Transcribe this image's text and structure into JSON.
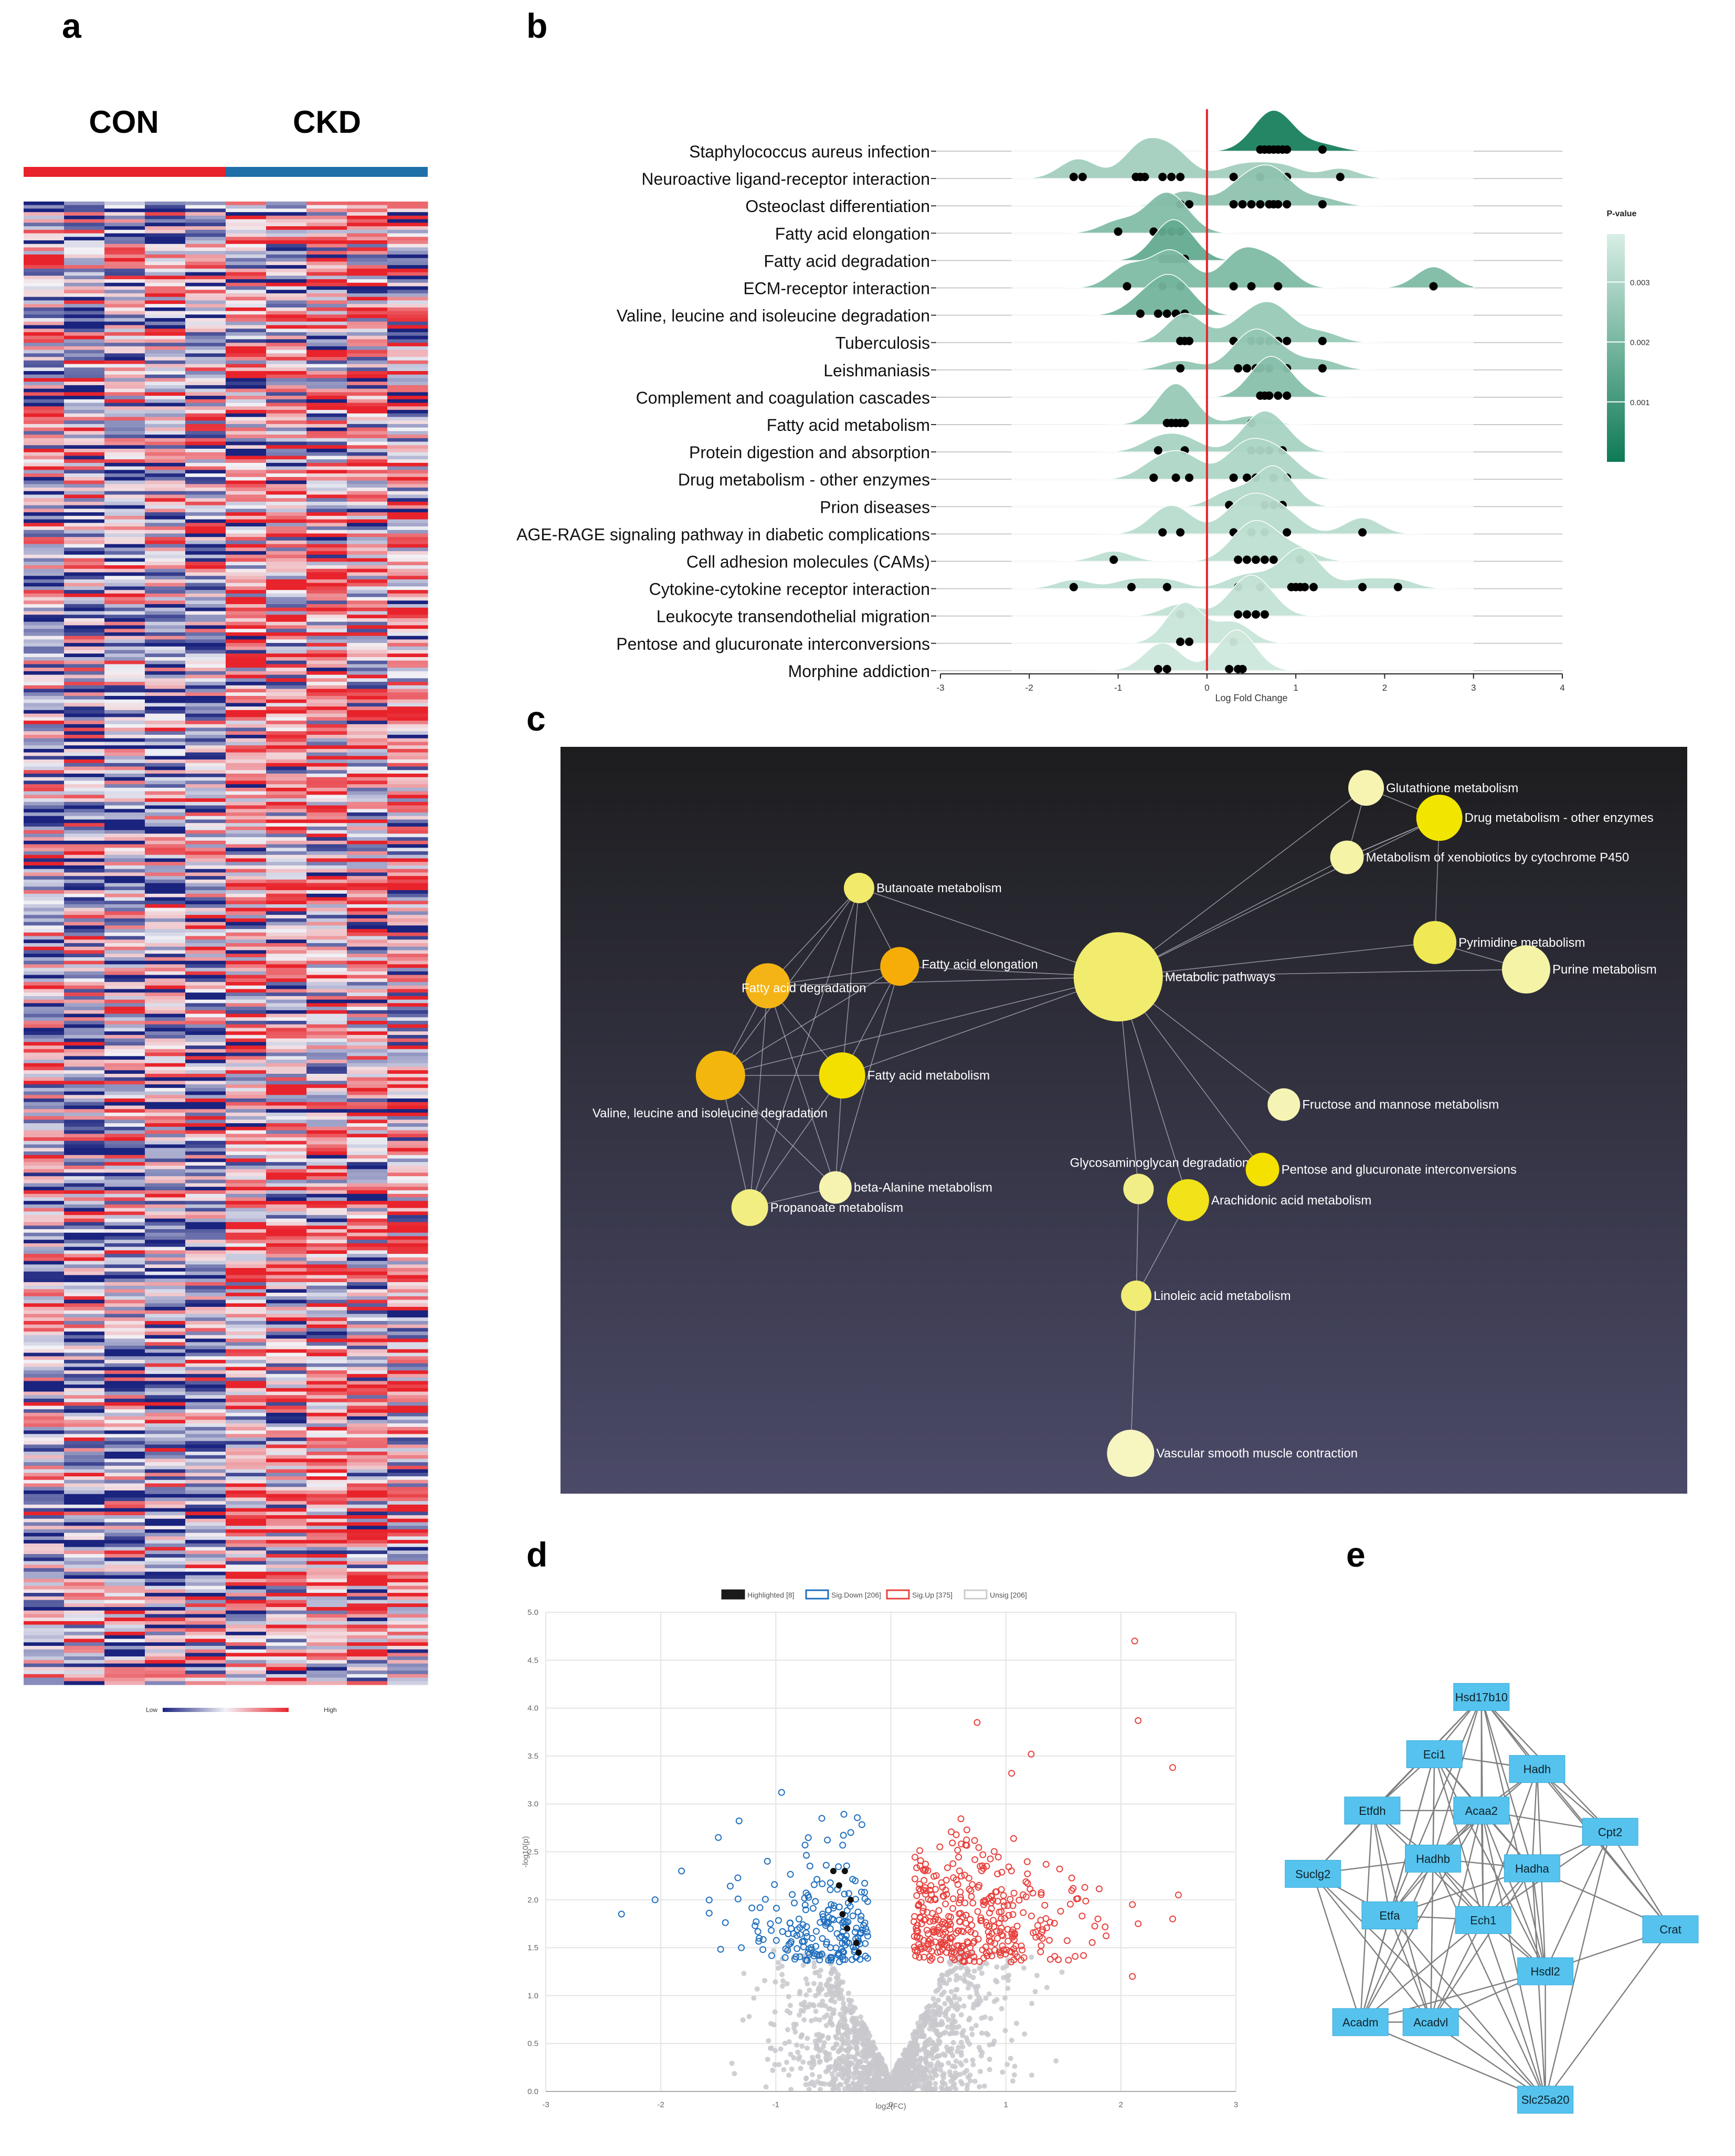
{
  "panels": {
    "a": {
      "letter": "a",
      "groups": [
        "CON",
        "CKD"
      ],
      "legend": {
        "low": "Low",
        "high": "High"
      },
      "colors": {
        "con": "#e8232b",
        "ckd": "#1f6fa8",
        "low": "#1a237e",
        "mid": "#f2f2f6",
        "high": "#e8232b"
      }
    },
    "b": {
      "letter": "b"
    },
    "c": {
      "letter": "c"
    },
    "d": {
      "letter": "d"
    },
    "e": {
      "letter": "e"
    }
  },
  "chart_data": [
    {
      "id": "ridge",
      "type": "ridgeline",
      "xlabel": "Log Fold Change",
      "xlim": [
        -3,
        4
      ],
      "xticks": [
        -3,
        -2,
        -1,
        0,
        1,
        2,
        3,
        4
      ],
      "refline_x": 0,
      "colorbar": {
        "title": "P-value",
        "ticks": [
          "0.003",
          "0.002",
          "0.001"
        ],
        "values": [
          0.003,
          0.002,
          0.001
        ],
        "range": [
          0.0,
          0.0038
        ]
      },
      "pathways": [
        {
          "name": "Staphylococcus aureus infection",
          "p": 0.0002,
          "points": [
            0.6,
            0.65,
            0.7,
            0.75,
            0.8,
            0.85,
            0.9,
            1.3
          ]
        },
        {
          "name": "Neuroactive ligand-receptor interaction",
          "p": 0.0028,
          "points": [
            -1.5,
            -1.4,
            -0.8,
            -0.75,
            -0.7,
            -0.5,
            -0.4,
            -0.3,
            0.3,
            0.6,
            0.9,
            1.5
          ]
        },
        {
          "name": "Osteoclast differentiation",
          "p": 0.0024,
          "points": [
            -0.3,
            -0.2,
            0.3,
            0.4,
            0.5,
            0.6,
            0.7,
            0.75,
            0.8,
            0.9,
            1.3
          ]
        },
        {
          "name": "Fatty acid elongation",
          "p": 0.0022,
          "points": [
            -1.0,
            -0.6,
            -0.5,
            -0.4,
            -0.3
          ]
        },
        {
          "name": "Fatty acid degradation",
          "p": 0.0016,
          "points": [
            -0.5,
            -0.45,
            -0.4,
            -0.35,
            -0.3,
            -0.25
          ]
        },
        {
          "name": "ECM-receptor interaction",
          "p": 0.0021,
          "points": [
            -0.9,
            -0.5,
            -0.3,
            0.3,
            0.5,
            0.8,
            2.55
          ]
        },
        {
          "name": "Valine, leucine and isoleucine degradation",
          "p": 0.0019,
          "points": [
            -0.75,
            -0.55,
            -0.45,
            -0.35,
            -0.25
          ]
        },
        {
          "name": "Tuberculosis",
          "p": 0.0026,
          "points": [
            -0.3,
            -0.25,
            -0.2,
            0.3,
            0.5,
            0.6,
            0.7,
            0.8,
            0.9,
            1.3
          ]
        },
        {
          "name": "Leishmaniasis",
          "p": 0.0025,
          "points": [
            -0.3,
            0.35,
            0.45,
            0.55,
            0.6,
            0.7,
            0.9,
            1.3
          ]
        },
        {
          "name": "Complement and coagulation cascades",
          "p": 0.0023,
          "points": [
            0.6,
            0.65,
            0.7,
            0.8,
            0.9
          ]
        },
        {
          "name": "Fatty acid metabolism",
          "p": 0.0026,
          "points": [
            -0.45,
            -0.4,
            -0.35,
            -0.3,
            -0.25,
            0.5
          ]
        },
        {
          "name": "Protein digestion and absorption",
          "p": 0.0029,
          "points": [
            -0.55,
            -0.25,
            0.5,
            0.6,
            0.7,
            0.85
          ]
        },
        {
          "name": "Drug metabolism - other enzymes",
          "p": 0.003,
          "points": [
            -0.6,
            -0.35,
            -0.2,
            0.3,
            0.45,
            0.55,
            0.75,
            0.9
          ]
        },
        {
          "name": "Prion diseases",
          "p": 0.0031,
          "points": [
            0.25,
            0.65,
            0.75,
            0.85
          ]
        },
        {
          "name": "AGE-RAGE signaling pathway in diabetic complications",
          "p": 0.0032,
          "points": [
            -0.5,
            -0.3,
            0.3,
            0.5,
            0.65,
            0.9,
            1.75
          ]
        },
        {
          "name": "Cell adhesion molecules (CAMs)",
          "p": 0.0033,
          "points": [
            -1.05,
            0.35,
            0.45,
            0.55,
            0.65,
            0.75,
            1.05
          ]
        },
        {
          "name": "Cytokine-cytokine receptor interaction",
          "p": 0.0033,
          "points": [
            -1.5,
            -0.85,
            -0.45,
            0.35,
            0.6,
            0.95,
            1.0,
            1.05,
            1.1,
            1.2,
            1.75,
            2.15
          ]
        },
        {
          "name": "Leukocyte transendothelial migration",
          "p": 0.0034,
          "points": [
            -0.3,
            0.35,
            0.45,
            0.55,
            0.65
          ]
        },
        {
          "name": "Pentose and glucuronate interconversions",
          "p": 0.0035,
          "points": [
            -0.3,
            -0.2,
            0.3
          ]
        },
        {
          "name": "Morphine addiction",
          "p": 0.0036,
          "points": [
            -0.55,
            -0.45,
            0.25,
            0.35,
            0.4
          ]
        }
      ]
    },
    {
      "id": "network",
      "type": "network",
      "nodes": [
        {
          "label": "Glutathione metabolism",
          "x": 0.715,
          "y": 0.055,
          "r": 34,
          "color": "#f7f4b2"
        },
        {
          "label": "Drug metabolism - other enzymes",
          "x": 0.78,
          "y": 0.095,
          "r": 44,
          "color": "#f2e600"
        },
        {
          "label": "Metabolism of xenobiotics by cytochrome P450",
          "x": 0.698,
          "y": 0.148,
          "r": 32,
          "color": "#f5f3a6"
        },
        {
          "label": "Butanoate metabolism",
          "x": 0.265,
          "y": 0.189,
          "r": 29,
          "color": "#f1ea6a"
        },
        {
          "label": "Pyrimidine metabolism",
          "x": 0.776,
          "y": 0.262,
          "r": 41,
          "color": "#f0e854"
        },
        {
          "label": "Purine metabolism",
          "x": 0.857,
          "y": 0.298,
          "r": 46,
          "color": "#f5f3a6"
        },
        {
          "label": "Fatty acid elongation",
          "x": 0.301,
          "y": 0.294,
          "r": 37,
          "color": "#f7ad08"
        },
        {
          "label": "Metabolic pathways",
          "x": 0.495,
          "y": 0.308,
          "r": 85,
          "color": "#f1ec6e"
        },
        {
          "label": "Fatty acid degradation",
          "x": 0.184,
          "y": 0.32,
          "r": 43,
          "color": "#f4b416"
        },
        {
          "label": "Fatty acid metabolism",
          "x": 0.25,
          "y": 0.44,
          "r": 44,
          "color": "#f4e000"
        },
        {
          "label": "Valine, leucine and isoleucine degradation",
          "x": 0.142,
          "y": 0.44,
          "r": 47,
          "color": "#f2b60c"
        },
        {
          "label": "Fructose and mannose metabolism",
          "x": 0.642,
          "y": 0.479,
          "r": 31,
          "color": "#f6f4b4"
        },
        {
          "label": "beta-Alanine metabolism",
          "x": 0.244,
          "y": 0.59,
          "r": 31,
          "color": "#f6f3b0"
        },
        {
          "label": "Glycosaminoglycan degradation",
          "x": 0.513,
          "y": 0.592,
          "r": 29,
          "color": "#f1ee88"
        },
        {
          "label": "Pentose and glucuronate interconversions",
          "x": 0.623,
          "y": 0.566,
          "r": 32,
          "color": "#f4e100"
        },
        {
          "label": "Arachidonic acid metabolism",
          "x": 0.557,
          "y": 0.607,
          "r": 40,
          "color": "#f1e21a"
        },
        {
          "label": "Propanoate metabolism",
          "x": 0.168,
          "y": 0.617,
          "r": 35,
          "color": "#f3ee82"
        },
        {
          "label": "Linoleic acid metabolism",
          "x": 0.511,
          "y": 0.735,
          "r": 29,
          "color": "#f1ec74"
        },
        {
          "label": "Vascular smooth muscle contraction",
          "x": 0.506,
          "y": 0.946,
          "r": 45,
          "color": "#f7f5c0"
        }
      ],
      "edges": [
        [
          7,
          3
        ],
        [
          7,
          6
        ],
        [
          7,
          8
        ],
        [
          7,
          9
        ],
        [
          7,
          10
        ],
        [
          7,
          2
        ],
        [
          7,
          0
        ],
        [
          7,
          1
        ],
        [
          7,
          4
        ],
        [
          7,
          5
        ],
        [
          7,
          11
        ],
        [
          7,
          14
        ],
        [
          7,
          13
        ],
        [
          7,
          15
        ],
        [
          3,
          6
        ],
        [
          3,
          8
        ],
        [
          3,
          9
        ],
        [
          3,
          10
        ],
        [
          6,
          8
        ],
        [
          6,
          9
        ],
        [
          6,
          10
        ],
        [
          6,
          12
        ],
        [
          8,
          9
        ],
        [
          8,
          10
        ],
        [
          8,
          12
        ],
        [
          8,
          16
        ],
        [
          9,
          10
        ],
        [
          9,
          12
        ],
        [
          9,
          16
        ],
        [
          10,
          12
        ],
        [
          10,
          16
        ],
        [
          12,
          16
        ],
        [
          0,
          1
        ],
        [
          0,
          2
        ],
        [
          1,
          2
        ],
        [
          1,
          4
        ],
        [
          2,
          1
        ],
        [
          4,
          5
        ],
        [
          15,
          17
        ],
        [
          13,
          17
        ],
        [
          17,
          18
        ],
        [
          3,
          16
        ]
      ]
    },
    {
      "id": "volcano",
      "type": "scatter",
      "xlabel": "log2(FC)",
      "ylabel": "-log10(p)",
      "xlim": [
        -3,
        3
      ],
      "ylim": [
        0,
        5
      ],
      "xticks": [
        -3,
        -2,
        -1,
        0,
        1,
        2,
        3
      ],
      "yticks": [
        0,
        0.5,
        1.0,
        1.5,
        2.0,
        2.5,
        3.0,
        3.5,
        4.0,
        4.5,
        5.0
      ],
      "legend": [
        {
          "label": "Highlighted [8]",
          "color": "#1a1a1a"
        },
        {
          "label": "Sig.Down [206]",
          "color": "#1f6fbf"
        },
        {
          "label": "Sig.Up [375]",
          "color": "#e8413d"
        },
        {
          "label": "Unsig [206]",
          "color": "#cccccc"
        }
      ],
      "counts": {
        "highlighted": 8,
        "down": 206,
        "up": 375,
        "unsig": 206
      },
      "outliers": [
        [
          2.12,
          4.7
        ],
        [
          2.15,
          3.87
        ],
        [
          0.75,
          3.85
        ],
        [
          1.22,
          3.52
        ],
        [
          2.45,
          3.38
        ],
        [
          1.05,
          3.32
        ],
        [
          -0.95,
          3.12
        ],
        [
          -0.6,
          2.85
        ],
        [
          -1.5,
          2.65
        ],
        [
          -1.82,
          2.3
        ],
        [
          -2.05,
          2.0
        ],
        [
          2.5,
          2.05
        ],
        [
          2.1,
          1.95
        ],
        [
          2.15,
          1.75
        ],
        [
          2.45,
          1.8
        ],
        [
          2.1,
          1.2
        ],
        [
          1.8,
          1.8
        ],
        [
          -1.3,
          1.5
        ],
        [
          -0.4,
          2.3
        ],
        [
          -0.45,
          2.15
        ],
        [
          -0.35,
          2.0
        ],
        [
          -0.42,
          1.85
        ],
        [
          -0.38,
          1.7
        ],
        [
          -0.3,
          1.55
        ],
        [
          -0.28,
          1.45
        ],
        [
          -0.5,
          2.3
        ]
      ]
    },
    {
      "id": "ppi",
      "type": "network",
      "nodes": [
        {
          "label": "Hsd17b10",
          "x": 0.463,
          "y": 0.072
        },
        {
          "label": "Eci1",
          "x": 0.36,
          "y": 0.196
        },
        {
          "label": "Hadh",
          "x": 0.585,
          "y": 0.228
        },
        {
          "label": "Etfdh",
          "x": 0.224,
          "y": 0.318
        },
        {
          "label": "Acaa2",
          "x": 0.463,
          "y": 0.318
        },
        {
          "label": "Cpt2",
          "x": 0.745,
          "y": 0.364
        },
        {
          "label": "Hadhb",
          "x": 0.357,
          "y": 0.422
        },
        {
          "label": "Hadha",
          "x": 0.574,
          "y": 0.443
        },
        {
          "label": "Suclg2",
          "x": 0.094,
          "y": 0.455
        },
        {
          "label": "Etfa",
          "x": 0.262,
          "y": 0.545
        },
        {
          "label": "Ech1",
          "x": 0.467,
          "y": 0.555
        },
        {
          "label": "Crat",
          "x": 0.877,
          "y": 0.575
        },
        {
          "label": "Hsdl2",
          "x": 0.603,
          "y": 0.666
        },
        {
          "label": "Acadm",
          "x": 0.198,
          "y": 0.776
        },
        {
          "label": "Acadvl",
          "x": 0.352,
          "y": 0.776
        },
        {
          "label": "Slc25a20",
          "x": 0.603,
          "y": 0.944
        }
      ],
      "edges": [
        [
          0,
          1
        ],
        [
          0,
          2
        ],
        [
          0,
          3
        ],
        [
          0,
          4
        ],
        [
          0,
          5
        ],
        [
          0,
          6
        ],
        [
          0,
          7
        ],
        [
          0,
          8
        ],
        [
          0,
          9
        ],
        [
          0,
          10
        ],
        [
          0,
          11
        ],
        [
          0,
          12
        ],
        [
          1,
          2
        ],
        [
          1,
          3
        ],
        [
          1,
          4
        ],
        [
          1,
          6
        ],
        [
          1,
          7
        ],
        [
          1,
          9
        ],
        [
          1,
          10
        ],
        [
          1,
          12
        ],
        [
          1,
          13
        ],
        [
          1,
          14
        ],
        [
          2,
          4
        ],
        [
          2,
          5
        ],
        [
          2,
          6
        ],
        [
          2,
          7
        ],
        [
          2,
          10
        ],
        [
          2,
          11
        ],
        [
          2,
          12
        ],
        [
          3,
          4
        ],
        [
          3,
          6
        ],
        [
          3,
          8
        ],
        [
          3,
          9
        ],
        [
          3,
          10
        ],
        [
          3,
          13
        ],
        [
          3,
          14
        ],
        [
          4,
          5
        ],
        [
          4,
          6
        ],
        [
          4,
          7
        ],
        [
          4,
          9
        ],
        [
          4,
          10
        ],
        [
          4,
          12
        ],
        [
          4,
          13
        ],
        [
          4,
          14
        ],
        [
          4,
          15
        ],
        [
          5,
          7
        ],
        [
          5,
          10
        ],
        [
          5,
          11
        ],
        [
          5,
          12
        ],
        [
          5,
          15
        ],
        [
          6,
          7
        ],
        [
          6,
          8
        ],
        [
          6,
          9
        ],
        [
          6,
          10
        ],
        [
          6,
          12
        ],
        [
          6,
          13
        ],
        [
          6,
          14
        ],
        [
          6,
          15
        ],
        [
          7,
          9
        ],
        [
          7,
          10
        ],
        [
          7,
          11
        ],
        [
          7,
          12
        ],
        [
          7,
          14
        ],
        [
          7,
          15
        ],
        [
          8,
          9
        ],
        [
          8,
          13
        ],
        [
          8,
          14
        ],
        [
          8,
          15
        ],
        [
          9,
          10
        ],
        [
          9,
          13
        ],
        [
          9,
          14
        ],
        [
          9,
          15
        ],
        [
          10,
          12
        ],
        [
          10,
          13
        ],
        [
          10,
          14
        ],
        [
          10,
          15
        ],
        [
          11,
          12
        ],
        [
          11,
          15
        ],
        [
          12,
          13
        ],
        [
          12,
          14
        ],
        [
          12,
          15
        ],
        [
          13,
          14
        ],
        [
          13,
          15
        ],
        [
          14,
          15
        ]
      ]
    }
  ]
}
